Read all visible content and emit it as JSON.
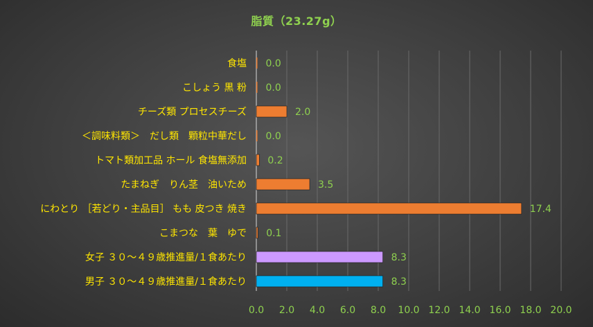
{
  "chart_data": {
    "type": "bar",
    "orientation": "horizontal",
    "title": "脂質（23.27g）",
    "categories": [
      "食塩",
      "こしょう 黒 粉",
      "チーズ類 プロセスチーズ",
      "＜調味料類＞　だし類　顆粒中華だし",
      "トマト類加工品 ホール 食塩無添加",
      "たまねぎ　りん茎　油いため",
      "にわとり ［若どり・主品目］ もも 皮つき 焼き",
      "こまつな　葉　ゆで",
      "女子 ３０～４９歳推進量/１食あたり",
      "男子 ３０～４９歳推進量/１食あたり"
    ],
    "values": [
      0.0,
      0.0,
      2.0,
      0.0,
      0.2,
      3.5,
      17.4,
      0.1,
      8.3,
      8.3
    ],
    "value_labels": [
      "0.0",
      "0.0",
      "2.0",
      "0.0",
      "0.2",
      "3.5",
      "17.4",
      "0.1",
      "8.3",
      "8.3"
    ],
    "bar_colors": [
      "#ed7d31",
      "#ed7d31",
      "#ed7d31",
      "#ed7d31",
      "#ed7d31",
      "#ed7d31",
      "#ed7d31",
      "#ed7d31",
      "#cc99ff",
      "#00b0f0"
    ],
    "xlim": [
      0,
      20
    ],
    "xticks": [
      "0.0",
      "2.0",
      "4.0",
      "6.0",
      "8.0",
      "10.0",
      "12.0",
      "14.0",
      "16.0",
      "18.0",
      "20.0"
    ],
    "grid": true,
    "legend": "none",
    "colors": {
      "category_text": "#ffe600",
      "value_text": "#8fd14f",
      "title_text": "#8fd14f"
    }
  }
}
